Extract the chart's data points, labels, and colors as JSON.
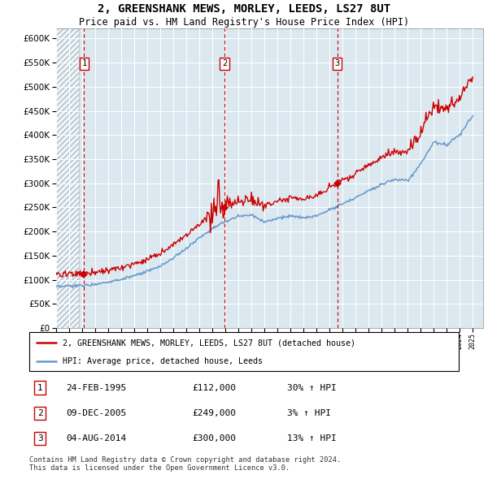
{
  "title": "2, GREENSHANK MEWS, MORLEY, LEEDS, LS27 8UT",
  "subtitle": "Price paid vs. HM Land Registry's House Price Index (HPI)",
  "title_fontsize": 10,
  "subtitle_fontsize": 8.5,
  "legend_line1": "2, GREENSHANK MEWS, MORLEY, LEEDS, LS27 8UT (detached house)",
  "legend_line2": "HPI: Average price, detached house, Leeds",
  "red_color": "#cc0000",
  "blue_color": "#6699cc",
  "bg_color": "#dce8f0",
  "sale_prices": [
    112000,
    249000,
    300000
  ],
  "sale_labels": [
    "1",
    "2",
    "3"
  ],
  "table_rows": [
    [
      "1",
      "24-FEB-1995",
      "£112,000",
      "30% ↑ HPI"
    ],
    [
      "2",
      "09-DEC-2005",
      "£249,000",
      "3% ↑ HPI"
    ],
    [
      "3",
      "04-AUG-2014",
      "£300,000",
      "13% ↑ HPI"
    ]
  ],
  "footer": "Contains HM Land Registry data © Crown copyright and database right 2024.\nThis data is licensed under the Open Government Licence v3.0.",
  "ylim": [
    0,
    620000
  ],
  "yticks": [
    0,
    50000,
    100000,
    150000,
    200000,
    250000,
    300000,
    350000,
    400000,
    450000,
    500000,
    550000,
    600000
  ]
}
